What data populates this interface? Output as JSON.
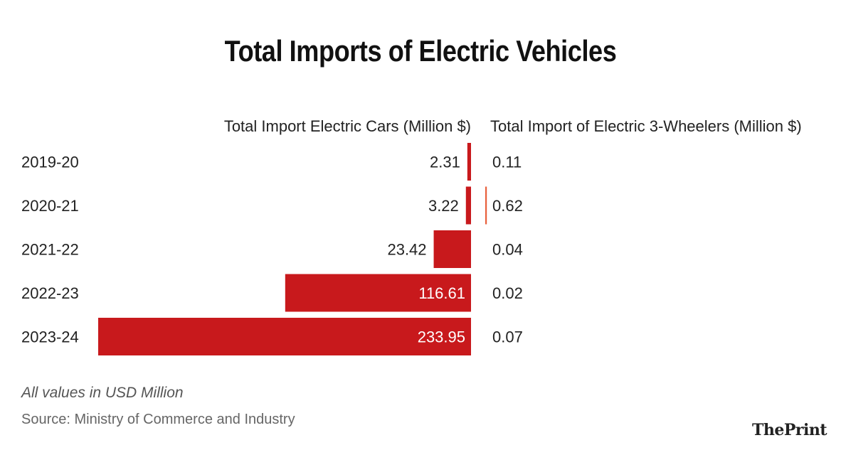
{
  "chart_data": {
    "type": "bar",
    "title": "Total Imports of Electric Vehicles",
    "categories": [
      "2019-20",
      "2020-21",
      "2021-22",
      "2022-23",
      "2023-24"
    ],
    "series": [
      {
        "name": "Total Import Electric Cars (Million $)",
        "values": [
          2.31,
          3.22,
          23.42,
          116.61,
          233.95
        ],
        "labels": [
          "2.31",
          "3.22",
          "23.42",
          "116.61",
          "233.95"
        ],
        "color": "#c8191c"
      },
      {
        "name": "Total Import of Electric 3-Wheelers (Million $)",
        "values": [
          0.11,
          0.62,
          0.04,
          0.02,
          0.07
        ],
        "labels": [
          "0.11",
          "0.62",
          "0.04",
          "0.02",
          "0.07"
        ],
        "color": "#e8603c"
      }
    ],
    "orientation": "horizontal",
    "note": "All values in USD Million",
    "source": "Source: Ministry of Commerce and Industry"
  },
  "brand": {
    "the": "The",
    "print": "Print"
  }
}
